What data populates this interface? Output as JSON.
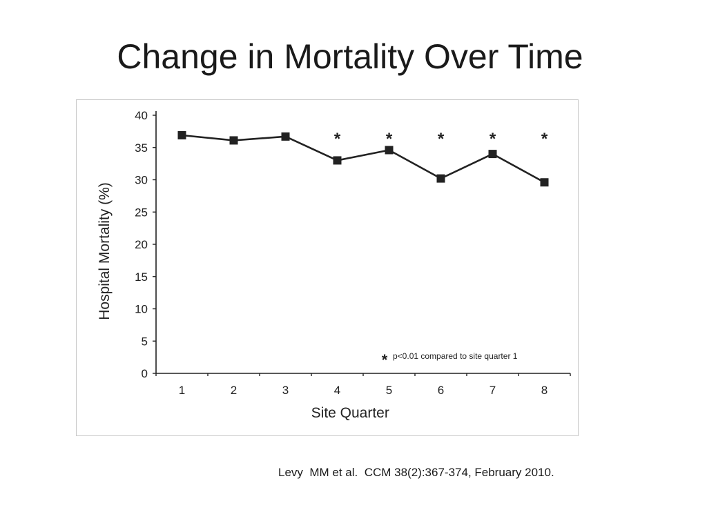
{
  "slide": {
    "title": "Change in Mortality Over Time",
    "citation": "Levy  MM et al.  CCM 38(2):367-374, February 2010."
  },
  "chart_data": {
    "type": "line",
    "title": "",
    "xlabel": "Site Quarter",
    "ylabel": "Hospital Mortality (%)",
    "x": [
      1,
      2,
      3,
      4,
      5,
      6,
      7,
      8
    ],
    "xticks": [
      "1",
      "2",
      "3",
      "4",
      "5",
      "6",
      "7",
      "8"
    ],
    "yticks": [
      "0",
      "5",
      "10",
      "15",
      "20",
      "25",
      "30",
      "35",
      "40"
    ],
    "ylim": [
      0,
      40
    ],
    "series": [
      {
        "name": "",
        "values": [
          36.9,
          36.1,
          36.7,
          33.0,
          34.6,
          30.2,
          34.0,
          29.6
        ],
        "marker": "square",
        "color": "#222222"
      }
    ],
    "significance_marker": "*",
    "significant_x": [
      4,
      5,
      6,
      7,
      8
    ],
    "annotation": {
      "symbol": "*",
      "text": "p<0.01 compared to site quarter 1"
    },
    "grid": false,
    "legend": "none"
  }
}
